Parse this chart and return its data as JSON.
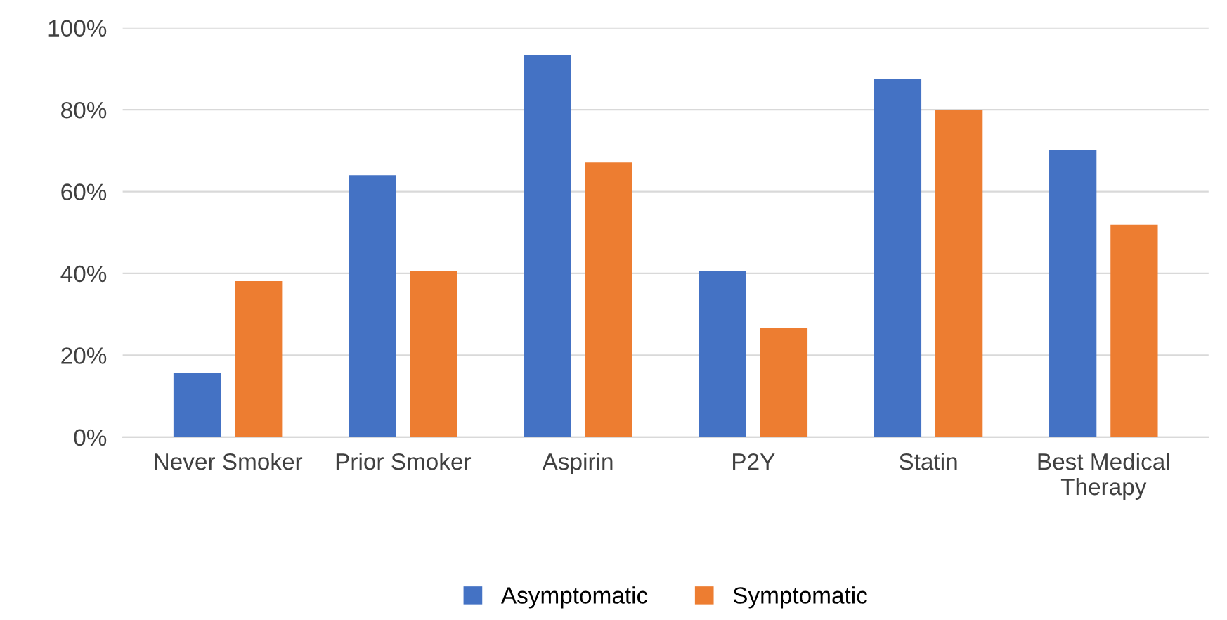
{
  "chart_data": {
    "type": "bar",
    "categories": [
      "Never Smoker",
      "Prior Smoker",
      "Aspirin",
      "P2Y",
      "Statin",
      "Best Medical Therapy"
    ],
    "series": [
      {
        "name": "Asymptomatic",
        "color": "#4472c4",
        "values": [
          15.6,
          64.0,
          93.4,
          40.5,
          87.5,
          70.2
        ]
      },
      {
        "name": "Symptomatic",
        "color": "#ed7d31",
        "values": [
          38.1,
          40.5,
          67.1,
          26.6,
          79.9,
          51.9
        ]
      }
    ],
    "ylim": [
      0,
      100
    ],
    "yticks": [
      {
        "value": 0,
        "label": "0%"
      },
      {
        "value": 20,
        "label": "20%"
      },
      {
        "value": 40,
        "label": "40%"
      },
      {
        "value": 60,
        "label": "60%"
      },
      {
        "value": 80,
        "label": "80%"
      },
      {
        "value": 100,
        "label": "100%"
      }
    ],
    "grid": "y",
    "legend": "bottom"
  }
}
